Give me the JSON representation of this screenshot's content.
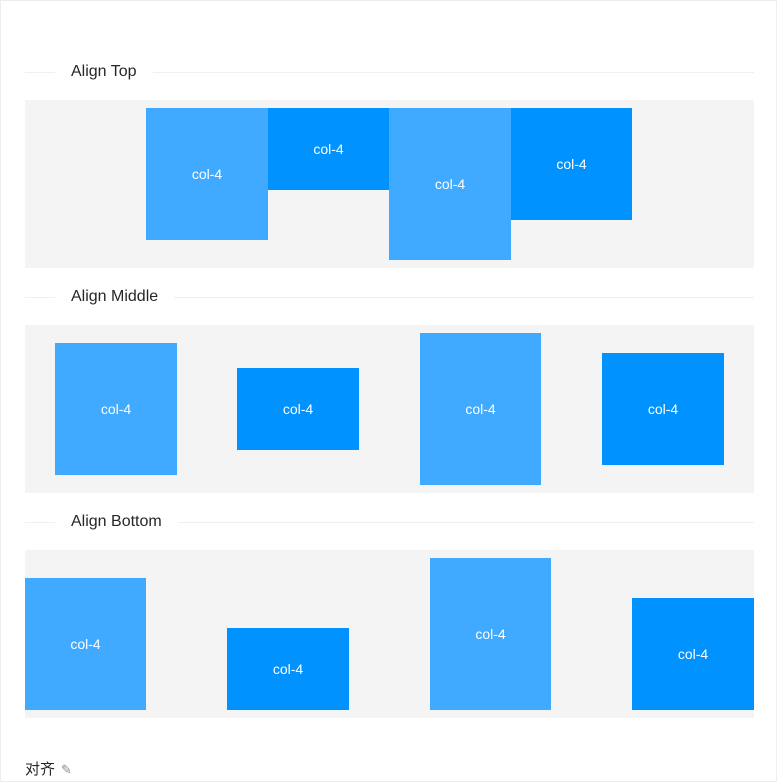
{
  "sections": [
    {
      "title": "Align Top",
      "cols": [
        "col-4",
        "col-4",
        "col-4",
        "col-4"
      ]
    },
    {
      "title": "Align Middle",
      "cols": [
        "col-4",
        "col-4",
        "col-4",
        "col-4"
      ]
    },
    {
      "title": "Align Bottom",
      "cols": [
        "col-4",
        "col-4",
        "col-4",
        "col-4"
      ]
    }
  ],
  "footer": {
    "title": "对齐",
    "icon": "edit-icon"
  },
  "colors": {
    "light": "#3faaff",
    "dark": "#0092ff",
    "row_bg": "#f4f4f4"
  }
}
